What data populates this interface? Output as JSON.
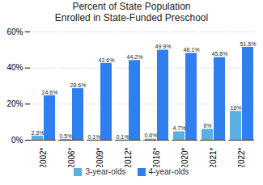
{
  "chart_data": {
    "type": "bar",
    "title": "Percent of State Population\nEnrolled in State-Funded Preschool",
    "categories": [
      "2002*",
      "2006*",
      "2009*",
      "2012*",
      "2016*",
      "2020*",
      "2021*",
      "2022*"
    ],
    "series": [
      {
        "name": "3-year-olds",
        "color": "#5aaee0",
        "values": [
          2.3,
          0.5,
          0.1,
          0.1,
          0.6,
          4.7,
          6,
          16
        ],
        "value_labels": [
          "2.3%",
          "0.5%",
          "0.1%",
          "0.1%",
          "0.6%",
          "4.7%",
          "6%",
          "16%"
        ]
      },
      {
        "name": "4-year-olds",
        "color": "#2f80ee",
        "values": [
          24.6,
          28.6,
          42.6,
          44.2,
          49.9,
          48.1,
          45.8,
          51.5
        ],
        "value_labels": [
          "24.6%",
          "28.6%",
          "42.6%",
          "44.2%",
          "49.9%",
          "48.1%",
          "45.8%",
          "51.5%"
        ]
      }
    ],
    "ylim": [
      0,
      60
    ],
    "yticks": [
      {
        "value": 0,
        "label": "0%"
      },
      {
        "value": 20,
        "label": "20%"
      },
      {
        "value": 40,
        "label": "40%"
      },
      {
        "value": 60,
        "label": "60%"
      }
    ],
    "grid": true,
    "data_labels": true,
    "legend": "bottom"
  }
}
